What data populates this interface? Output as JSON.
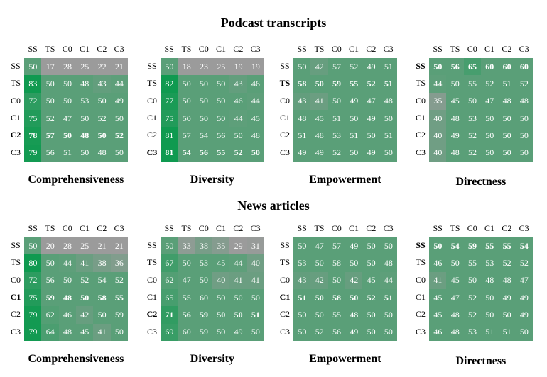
{
  "sections": [
    {
      "title": "Podcast transcripts"
    },
    {
      "title": "News articles"
    }
  ],
  "colors": {
    "gray": "#9b9b9b",
    "mid": "#5a9f78",
    "strong": "#0f9a50"
  },
  "chart_data": [
    {
      "type": "heatmap",
      "section": "Podcast transcripts",
      "title": "Comprehensiveness",
      "rows": [
        "SS",
        "TS",
        "C0",
        "C1",
        "C2",
        "C3"
      ],
      "cols": [
        "SS",
        "TS",
        "C0",
        "C1",
        "C2",
        "C3"
      ],
      "bold_rows": [
        "C2"
      ],
      "bold_cols": [],
      "values": [
        [
          50,
          17,
          28,
          25,
          22,
          21
        ],
        [
          83,
          50,
          50,
          48,
          43,
          44
        ],
        [
          72,
          50,
          50,
          53,
          50,
          49
        ],
        [
          75,
          52,
          47,
          50,
          52,
          50
        ],
        [
          78,
          57,
          50,
          48,
          50,
          52
        ],
        [
          79,
          56,
          51,
          50,
          48,
          50
        ]
      ]
    },
    {
      "type": "heatmap",
      "section": "Podcast transcripts",
      "title": "Diversity",
      "rows": [
        "SS",
        "TS",
        "C0",
        "C1",
        "C2",
        "C3"
      ],
      "cols": [
        "SS",
        "TS",
        "C0",
        "C1",
        "C2",
        "C3"
      ],
      "bold_rows": [
        "C3"
      ],
      "bold_cols": [],
      "values": [
        [
          50,
          18,
          23,
          25,
          19,
          19
        ],
        [
          82,
          50,
          50,
          50,
          43,
          46
        ],
        [
          77,
          50,
          50,
          50,
          46,
          44
        ],
        [
          75,
          50,
          50,
          50,
          44,
          45
        ],
        [
          81,
          57,
          54,
          56,
          50,
          48
        ],
        [
          81,
          54,
          56,
          55,
          52,
          50
        ]
      ]
    },
    {
      "type": "heatmap",
      "section": "Podcast transcripts",
      "title": "Empowerment",
      "rows": [
        "SS",
        "TS",
        "C0",
        "C1",
        "C2",
        "C3"
      ],
      "cols": [
        "SS",
        "TS",
        "C0",
        "C1",
        "C2",
        "C3"
      ],
      "bold_rows": [
        "TS"
      ],
      "bold_cols": [],
      "values": [
        [
          50,
          42,
          57,
          52,
          49,
          51
        ],
        [
          58,
          50,
          59,
          55,
          52,
          51
        ],
        [
          43,
          41,
          50,
          49,
          47,
          48
        ],
        [
          48,
          45,
          51,
          50,
          49,
          50
        ],
        [
          51,
          48,
          53,
          51,
          50,
          51
        ],
        [
          49,
          49,
          52,
          50,
          49,
          50
        ]
      ]
    },
    {
      "type": "heatmap",
      "section": "Podcast transcripts",
      "title": "Directness",
      "rows": [
        "SS",
        "TS",
        "C0",
        "C1",
        "C2",
        "C3"
      ],
      "cols": [
        "SS",
        "TS",
        "C0",
        "C1",
        "C2",
        "C3"
      ],
      "bold_rows": [
        "SS"
      ],
      "bold_cols": [],
      "values": [
        [
          50,
          56,
          65,
          60,
          60,
          60
        ],
        [
          44,
          50,
          55,
          52,
          51,
          52
        ],
        [
          35,
          45,
          50,
          47,
          48,
          48
        ],
        [
          40,
          48,
          53,
          50,
          50,
          50
        ],
        [
          40,
          49,
          52,
          50,
          50,
          50
        ],
        [
          40,
          48,
          52,
          50,
          50,
          50
        ]
      ]
    },
    {
      "type": "heatmap",
      "section": "News articles",
      "title": "Comprehensiveness",
      "rows": [
        "SS",
        "TS",
        "C0",
        "C1",
        "C2",
        "C3"
      ],
      "cols": [
        "SS",
        "TS",
        "C0",
        "C1",
        "C2",
        "C3"
      ],
      "bold_rows": [
        "C1"
      ],
      "bold_cols": [],
      "values": [
        [
          50,
          20,
          28,
          25,
          21,
          21
        ],
        [
          80,
          50,
          44,
          41,
          38,
          36
        ],
        [
          72,
          56,
          50,
          52,
          54,
          52
        ],
        [
          75,
          59,
          48,
          50,
          58,
          55
        ],
        [
          79,
          62,
          46,
          42,
          50,
          59
        ],
        [
          79,
          64,
          48,
          45,
          41,
          50
        ]
      ]
    },
    {
      "type": "heatmap",
      "section": "News articles",
      "title": "Diversity",
      "rows": [
        "SS",
        "TS",
        "C0",
        "C1",
        "C2",
        "C3"
      ],
      "cols": [
        "SS",
        "TS",
        "C0",
        "C1",
        "C2",
        "C3"
      ],
      "bold_rows": [
        "C2"
      ],
      "bold_cols": [],
      "values": [
        [
          50,
          33,
          38,
          35,
          29,
          31
        ],
        [
          67,
          50,
          53,
          45,
          44,
          40
        ],
        [
          62,
          47,
          50,
          40,
          41,
          41
        ],
        [
          65,
          55,
          60,
          50,
          50,
          50
        ],
        [
          71,
          56,
          59,
          50,
          50,
          51
        ],
        [
          69,
          60,
          59,
          50,
          49,
          50
        ]
      ]
    },
    {
      "type": "heatmap",
      "section": "News articles",
      "title": "Empowerment",
      "rows": [
        "SS",
        "TS",
        "C0",
        "C1",
        "C2",
        "C3"
      ],
      "cols": [
        "SS",
        "TS",
        "C0",
        "C1",
        "C2",
        "C3"
      ],
      "bold_rows": [
        "C1"
      ],
      "bold_cols": [],
      "values": [
        [
          50,
          47,
          57,
          49,
          50,
          50
        ],
        [
          53,
          50,
          58,
          50,
          50,
          48
        ],
        [
          43,
          42,
          50,
          42,
          45,
          44
        ],
        [
          51,
          50,
          58,
          50,
          52,
          51
        ],
        [
          50,
          50,
          55,
          48,
          50,
          50
        ],
        [
          50,
          52,
          56,
          49,
          50,
          50
        ]
      ]
    },
    {
      "type": "heatmap",
      "section": "News articles",
      "title": "Directness",
      "rows": [
        "SS",
        "TS",
        "C0",
        "C1",
        "C2",
        "C3"
      ],
      "cols": [
        "SS",
        "TS",
        "C0",
        "C1",
        "C2",
        "C3"
      ],
      "bold_rows": [
        "SS"
      ],
      "bold_cols": [],
      "values": [
        [
          50,
          54,
          59,
          55,
          55,
          54
        ],
        [
          46,
          50,
          55,
          53,
          52,
          52
        ],
        [
          41,
          45,
          50,
          48,
          48,
          47
        ],
        [
          45,
          47,
          52,
          50,
          49,
          49
        ],
        [
          45,
          48,
          52,
          50,
          50,
          49
        ],
        [
          46,
          48,
          53,
          51,
          51,
          50
        ]
      ]
    }
  ]
}
